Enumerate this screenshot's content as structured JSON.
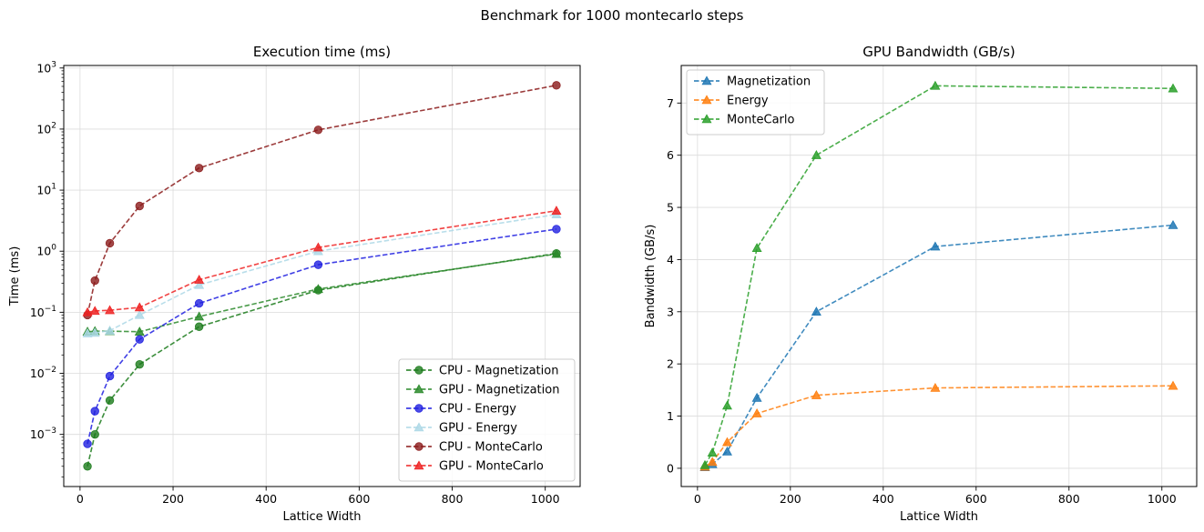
{
  "figure": {
    "suptitle": "Benchmark for 1000 montecarlo steps"
  },
  "chart_data": [
    {
      "type": "line",
      "title": "Execution time (ms)",
      "xlabel": "Lattice Width",
      "ylabel": "Time (ms)",
      "yscale": "log",
      "xlim": [
        -35,
        1075
      ],
      "ylim": [
        0.00014,
        1100
      ],
      "xticks": [
        0,
        200,
        400,
        600,
        800,
        1000
      ],
      "yticks": [
        -3,
        -2,
        -1,
        0,
        1,
        2,
        3
      ],
      "grid": true,
      "legend": "lower-right",
      "x": [
        16,
        32,
        64,
        128,
        256,
        512,
        1024
      ],
      "series": [
        {
          "name": "CPU - Magnetization",
          "marker": "circle",
          "color": "#1a7a1a",
          "values": [
            0.0003,
            0.001,
            0.0036,
            0.014,
            0.058,
            0.23,
            0.92
          ]
        },
        {
          "name": "GPU - Magnetization",
          "marker": "triangle",
          "color": "#2a8a2a",
          "values": [
            0.048,
            0.049,
            0.049,
            0.048,
            0.085,
            0.24,
            0.9
          ]
        },
        {
          "name": "CPU - Energy",
          "marker": "circle",
          "color": "#1f1fe0",
          "values": [
            0.0007,
            0.0024,
            0.009,
            0.036,
            0.14,
            0.6,
            2.3
          ]
        },
        {
          "name": "GPU - Energy",
          "marker": "triangle",
          "color": "#add8e6",
          "values": [
            0.045,
            0.046,
            0.05,
            0.09,
            0.28,
            1.0,
            4.0
          ]
        },
        {
          "name": "CPU - MonteCarlo",
          "marker": "circle",
          "color": "#8b1a1a",
          "values": [
            0.09,
            0.33,
            1.35,
            5.5,
            23,
            97,
            520
          ]
        },
        {
          "name": "GPU - MonteCarlo",
          "marker": "triangle",
          "color": "#ee2222",
          "values": [
            0.1,
            0.105,
            0.108,
            0.12,
            0.34,
            1.15,
            4.6
          ]
        }
      ]
    },
    {
      "type": "line",
      "title": "GPU Bandwidth (GB/s)",
      "xlabel": "Lattice Width",
      "ylabel": "Bandwidth (GB/s)",
      "yscale": "linear",
      "xlim": [
        -35,
        1075
      ],
      "ylim": [
        -0.35,
        7.72
      ],
      "xticks": [
        0,
        200,
        400,
        600,
        800,
        1000
      ],
      "yticks": [
        0,
        1,
        2,
        3,
        4,
        5,
        6,
        7
      ],
      "grid": true,
      "legend": "upper-left",
      "x": [
        16,
        32,
        64,
        128,
        256,
        512,
        1024
      ],
      "series": [
        {
          "name": "Magnetization",
          "marker": "triangle",
          "color": "#1f77b4",
          "values": [
            0.02,
            0.08,
            0.32,
            1.35,
            3.0,
            4.25,
            4.66
          ]
        },
        {
          "name": "Energy",
          "marker": "triangle",
          "color": "#ff7f0e",
          "values": [
            0.03,
            0.12,
            0.5,
            1.05,
            1.4,
            1.54,
            1.58
          ]
        },
        {
          "name": "MonteCarlo",
          "marker": "triangle",
          "color": "#2ca02c",
          "values": [
            0.06,
            0.3,
            1.2,
            4.22,
            6.0,
            7.33,
            7.28
          ]
        }
      ]
    }
  ]
}
